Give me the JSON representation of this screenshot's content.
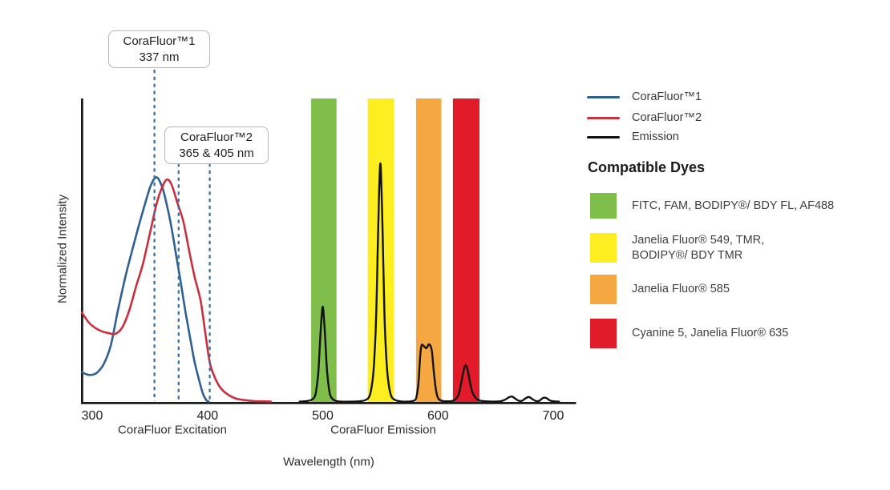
{
  "figure": {
    "ylabel": "Normalized Intensity",
    "xlabel": "Wavelength (nm)",
    "excitation_section_label": "CoraFluor Excitation",
    "emission_section_label": "CoraFluor Emission"
  },
  "legend": {
    "series": [
      {
        "label": "CoraFluor™1",
        "color": "#2e6092"
      },
      {
        "label": "CoraFluor™2",
        "color": "#c9303e"
      },
      {
        "label": "Emission",
        "color": "#121212"
      }
    ],
    "dyes_heading": "Compatible Dyes",
    "dyes": [
      {
        "color": "#7fbe4a",
        "lines": [
          "FITC, FAM, BODIPY®/ BDY FL, AF488"
        ]
      },
      {
        "color": "#fcee21",
        "lines": [
          "Janelia Fluor® 549, TMR,",
          "BODIPY®/ BDY TMR"
        ]
      },
      {
        "color": "#f5a841",
        "lines": [
          "Janelia Fluor® 585"
        ]
      },
      {
        "color": "#e11b29",
        "lines": [
          "Cyanine 5, Janelia Fluor® 635"
        ]
      }
    ]
  },
  "chart_data": {
    "type": "line",
    "title": "CoraFluor excitation and emission spectra with compatible dyes",
    "xlabel": "Wavelength (nm)",
    "ylabel": "Normalized Intensity",
    "xlim": [
      291,
      720
    ],
    "ylim": [
      0,
      1
    ],
    "x_ticks": [
      300,
      400,
      500,
      600,
      700
    ],
    "grid": false,
    "legend_position": "right",
    "series": [
      {
        "name": "CoraFluor™1",
        "role": "excitation",
        "color": "#2e6092",
        "stated_peak_nm": "337 nm",
        "points": [
          [
            291,
            0.098
          ],
          [
            295,
            0.091
          ],
          [
            299,
            0.089
          ],
          [
            304,
            0.096
          ],
          [
            310,
            0.125
          ],
          [
            316,
            0.185
          ],
          [
            322,
            0.296
          ],
          [
            328,
            0.4
          ],
          [
            334,
            0.49
          ],
          [
            340,
            0.575
          ],
          [
            346,
            0.655
          ],
          [
            351,
            0.715
          ],
          [
            356,
            0.74
          ],
          [
            361,
            0.705
          ],
          [
            365,
            0.645
          ],
          [
            369,
            0.57
          ],
          [
            373,
            0.48
          ],
          [
            377,
            0.39
          ],
          [
            381,
            0.295
          ],
          [
            385,
            0.21
          ],
          [
            389,
            0.129
          ],
          [
            393,
            0.068
          ],
          [
            396,
            0.028
          ],
          [
            399,
            0.006
          ],
          [
            401,
            0.001
          ]
        ]
      },
      {
        "name": "CoraFluor™2",
        "role": "excitation",
        "color": "#c9303e",
        "stated_peak_nm": "365 & 405 nm",
        "points": [
          [
            291,
            0.295
          ],
          [
            297,
            0.262
          ],
          [
            303,
            0.243
          ],
          [
            309,
            0.232
          ],
          [
            315,
            0.226
          ],
          [
            320,
            0.224
          ],
          [
            326,
            0.245
          ],
          [
            332,
            0.3
          ],
          [
            338,
            0.38
          ],
          [
            344,
            0.455
          ],
          [
            350,
            0.555
          ],
          [
            356,
            0.655
          ],
          [
            361,
            0.71
          ],
          [
            365,
            0.733
          ],
          [
            369,
            0.715
          ],
          [
            374,
            0.655
          ],
          [
            379,
            0.595
          ],
          [
            384,
            0.5
          ],
          [
            389,
            0.41
          ],
          [
            394,
            0.335
          ],
          [
            398,
            0.23
          ],
          [
            402,
            0.13
          ],
          [
            406,
            0.084
          ],
          [
            411,
            0.048
          ],
          [
            417,
            0.026
          ],
          [
            424,
            0.012
          ],
          [
            432,
            0.006
          ],
          [
            440,
            0.003
          ],
          [
            448,
            0.002
          ],
          [
            455,
            0.001
          ]
        ]
      },
      {
        "name": "Emission",
        "role": "emission",
        "color": "#121212",
        "peak_summary_nm": [
          500,
          550,
          591,
          624,
          664,
          680,
          694
        ],
        "points": [
          [
            480,
            0.001
          ],
          [
            488,
            0.004
          ],
          [
            492,
            0.012
          ],
          [
            494,
            0.03
          ],
          [
            496,
            0.09
          ],
          [
            497,
            0.15
          ],
          [
            498,
            0.22
          ],
          [
            499,
            0.28
          ],
          [
            500,
            0.314
          ],
          [
            501,
            0.28
          ],
          [
            502,
            0.22
          ],
          [
            503,
            0.15
          ],
          [
            504,
            0.09
          ],
          [
            506,
            0.03
          ],
          [
            508,
            0.012
          ],
          [
            511,
            0.004
          ],
          [
            516,
            0.001
          ],
          [
            525,
            0.001
          ],
          [
            532,
            0.002
          ],
          [
            537,
            0.006
          ],
          [
            540,
            0.015
          ],
          [
            542,
            0.04
          ],
          [
            544,
            0.1
          ],
          [
            546,
            0.24
          ],
          [
            547,
            0.38
          ],
          [
            548,
            0.55
          ],
          [
            549,
            0.7
          ],
          [
            550,
            0.786
          ],
          [
            551,
            0.7
          ],
          [
            552,
            0.55
          ],
          [
            553,
            0.38
          ],
          [
            554,
            0.24
          ],
          [
            556,
            0.1
          ],
          [
            558,
            0.04
          ],
          [
            560,
            0.015
          ],
          [
            563,
            0.006
          ],
          [
            567,
            0.002
          ],
          [
            573,
            0.001
          ],
          [
            578,
            0.003
          ],
          [
            581,
            0.012
          ],
          [
            583,
            0.06
          ],
          [
            584,
            0.12
          ],
          [
            585,
            0.17
          ],
          [
            586,
            0.188
          ],
          [
            588,
            0.183
          ],
          [
            590,
            0.177
          ],
          [
            592,
            0.19
          ],
          [
            594,
            0.18
          ],
          [
            595,
            0.158
          ],
          [
            596,
            0.115
          ],
          [
            598,
            0.045
          ],
          [
            600,
            0.013
          ],
          [
            603,
            0.004
          ],
          [
            607,
            0.002
          ],
          [
            612,
            0.003
          ],
          [
            615,
            0.008
          ],
          [
            618,
            0.025
          ],
          [
            620,
            0.06
          ],
          [
            622,
            0.1
          ],
          [
            624,
            0.121
          ],
          [
            626,
            0.1
          ],
          [
            628,
            0.06
          ],
          [
            630,
            0.03
          ],
          [
            633,
            0.012
          ],
          [
            636,
            0.005
          ],
          [
            641,
            0.002
          ],
          [
            648,
            0.001
          ],
          [
            654,
            0.002
          ],
          [
            658,
            0.007
          ],
          [
            661,
            0.014
          ],
          [
            664,
            0.018
          ],
          [
            667,
            0.011
          ],
          [
            670,
            0.004
          ],
          [
            673,
            0.004
          ],
          [
            676,
            0.012
          ],
          [
            679,
            0.016
          ],
          [
            682,
            0.009
          ],
          [
            685,
            0.003
          ],
          [
            688,
            0.004
          ],
          [
            691,
            0.013
          ],
          [
            694,
            0.013
          ],
          [
            697,
            0.005
          ],
          [
            700,
            0.002
          ],
          [
            705,
            0.001
          ]
        ]
      }
    ],
    "bands": [
      {
        "label": "FITC, FAM, BODIPY®/ BDY FL, AF488",
        "color": "#7fbe4a",
        "range_nm": [
          490,
          512
        ]
      },
      {
        "label": "Janelia Fluor® 549, TMR, BODIPY®/ BDY TMR",
        "color": "#fcee21",
        "range_nm": [
          539,
          562
        ]
      },
      {
        "label": "Janelia Fluor® 585",
        "color": "#f5a841",
        "range_nm": [
          581,
          603
        ]
      },
      {
        "label": "Cyanine 5, Janelia Fluor® 635",
        "color": "#e11b29",
        "range_nm": [
          613,
          636
        ]
      }
    ],
    "annotations": [
      {
        "lines": [
          "CoraFluor™1",
          "337 nm"
        ],
        "marker_wavelengths_nm": [
          354
        ]
      },
      {
        "lines": [
          "CoraFluor™2",
          "365 & 405 nm"
        ],
        "marker_wavelengths_nm": [
          375,
          402
        ]
      }
    ],
    "x_section_labels": [
      "CoraFluor Excitation",
      "CoraFluor Emission"
    ]
  }
}
